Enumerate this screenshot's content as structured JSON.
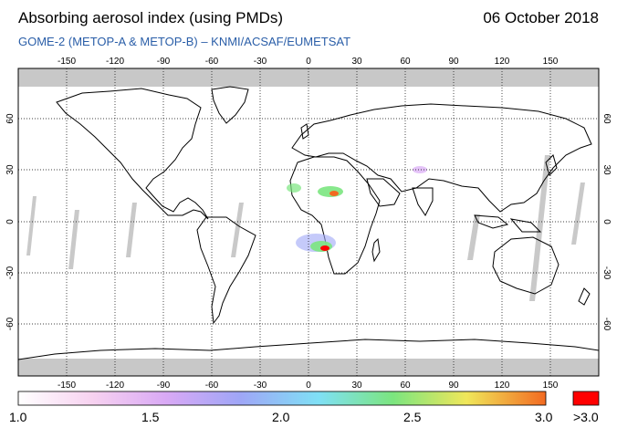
{
  "header": {
    "title": "Absorbing aerosol index (using PMDs)",
    "date": "06 October 2018",
    "subtitle": "GOME-2 (METOP-A & METOP-B)  –  KNMI/ACSAF/EUMETSAT"
  },
  "map": {
    "lon_ticks": [
      "-150",
      "-120",
      "-90",
      "-60",
      "-30",
      "0",
      "30",
      "60",
      "90",
      "120",
      "150"
    ],
    "lat_ticks_left": [
      "60",
      "30",
      "0",
      "-30",
      "-60"
    ],
    "lat_ticks_right": [
      "60",
      "30",
      "0",
      "-30",
      "-60"
    ],
    "colors": {
      "gridline": "#000000",
      "land_outline": "#000000",
      "nodata": "#bdbdbd"
    }
  },
  "colorbar": {
    "labels": [
      "1.0",
      "1.5",
      "2.0",
      "2.5",
      "3.0"
    ],
    "overflow_label": ">3.0",
    "overflow_color": "#ff0000",
    "gradient": [
      "#ffffff",
      "#f7d2f0",
      "#d9a9f5",
      "#9fa6f7",
      "#7fe0f5",
      "#7be57f",
      "#f0e75a",
      "#f26a21"
    ]
  }
}
